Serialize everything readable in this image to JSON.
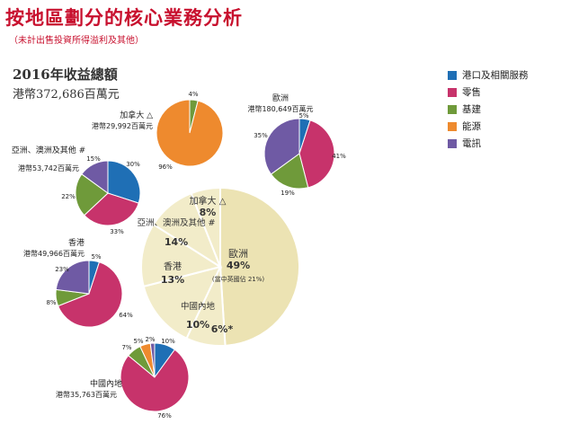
{
  "page": {
    "title": "按地區劃分的核心業務分析",
    "subtitle": "（未計出售投資所得溢利及其他）",
    "revenue_title": "2016年收益總額",
    "revenue_value": "港幣372,686百萬元"
  },
  "colors": {
    "title": "#c8102e",
    "ports": "#1f6fb5",
    "retail": "#c7336b",
    "infra": "#6f9a3a",
    "energy": "#ee8a2e",
    "telecom": "#6f5aa4",
    "center_pie": "#f2ecc9",
    "center_pie_main": "#ece3b3",
    "center_pie_border": "#ddd09a"
  },
  "legend": [
    {
      "label": "港口及相關服務",
      "color_key": "ports"
    },
    {
      "label": "零售",
      "color_key": "retail"
    },
    {
      "label": "基建",
      "color_key": "infra"
    },
    {
      "label": "能源",
      "color_key": "energy"
    },
    {
      "label": "電訊",
      "color_key": "telecom"
    }
  ],
  "chart_data": [
    {
      "type": "pie",
      "title": "",
      "slices": [
        {
          "label": "歐洲",
          "value": 49,
          "text": "49%",
          "note": "(當中英國佔 21%)"
        },
        {
          "label": "加拿大 △",
          "value": 8,
          "text": "8%"
        },
        {
          "label": "亞洲、澳洲及其他 #",
          "value": 14,
          "text": "14%"
        },
        {
          "label": "香港",
          "value": 13,
          "text": "13%"
        },
        {
          "label": "中國內地",
          "value": 10,
          "text": "10%"
        },
        {
          "label": "",
          "value": 6,
          "text": "6%*"
        }
      ]
    },
    {
      "type": "pie",
      "title": "加拿大 △",
      "subtitle": "港幣29,992百萬元",
      "slices": [
        {
          "label": "基建",
          "value": 4,
          "text": "4%"
        },
        {
          "label": "能源",
          "value": 96,
          "text": "96%"
        }
      ]
    },
    {
      "type": "pie",
      "title": "歐洲",
      "subtitle": "港幣180,649百萬元",
      "slices": [
        {
          "label": "港口及相關服務",
          "value": 5,
          "text": "5%"
        },
        {
          "label": "零售",
          "value": 41,
          "text": "41%"
        },
        {
          "label": "基建",
          "value": 19,
          "text": "19%"
        },
        {
          "label": "電訊",
          "value": 35,
          "text": "35%"
        }
      ]
    },
    {
      "type": "pie",
      "title": "亞洲、澳洲及其他 #",
      "subtitle": "港幣53,742百萬元",
      "slices": [
        {
          "label": "港口及相關服務",
          "value": 30,
          "text": "30%"
        },
        {
          "label": "零售",
          "value": 33,
          "text": "33%"
        },
        {
          "label": "基建",
          "value": 22,
          "text": "22%"
        },
        {
          "label": "電訊",
          "value": 15,
          "text": "15%"
        }
      ]
    },
    {
      "type": "pie",
      "title": "香港",
      "subtitle": "港幣49,966百萬元",
      "slices": [
        {
          "label": "港口及相關服務",
          "value": 5,
          "text": "5%"
        },
        {
          "label": "零售",
          "value": 64,
          "text": "64%"
        },
        {
          "label": "基建",
          "value": 8,
          "text": "8%"
        },
        {
          "label": "電訊",
          "value": 23,
          "text": "23%"
        }
      ]
    },
    {
      "type": "pie",
      "title": "中國內地",
      "subtitle": "港幣35,763百萬元",
      "slices": [
        {
          "label": "港口及相關服務",
          "value": 10,
          "text": "10%"
        },
        {
          "label": "零售",
          "value": 76,
          "text": "76%"
        },
        {
          "label": "基建",
          "value": 7,
          "text": "7%"
        },
        {
          "label": "能源",
          "value": 5,
          "text": "5%"
        },
        {
          "label": "電訊",
          "value": 2,
          "text": "2%"
        }
      ]
    }
  ]
}
